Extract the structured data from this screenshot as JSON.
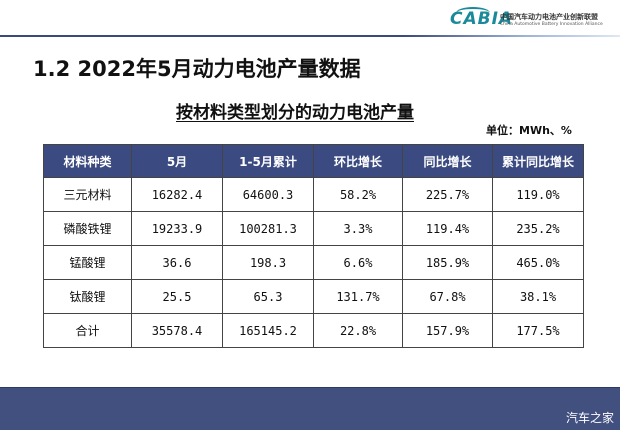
{
  "header": {
    "logo_mark": "CABIA",
    "logo_cn": "中国汽车动力电池产业创新联盟",
    "logo_en": "China Automotive Battery Innovation Alliance"
  },
  "section_title": "1.2 2022年5月动力电池产量数据",
  "table_title": "按材料类型划分的动力电池产量",
  "unit": "单位：MWh、%",
  "table": {
    "headers": [
      "材料种类",
      "5月",
      "1-5月累计",
      "环比增长",
      "同比增长",
      "累计同比增长"
    ],
    "rows": [
      [
        "三元材料",
        "16282.4",
        "64600.3",
        "58.2%",
        "225.7%",
        "119.0%"
      ],
      [
        "磷酸铁锂",
        "19233.9",
        "100281.3",
        "3.3%",
        "119.4%",
        "235.2%"
      ],
      [
        "锰酸锂",
        "36.6",
        "198.3",
        "6.6%",
        "185.9%",
        "465.0%"
      ],
      [
        "钛酸锂",
        "25.5",
        "65.3",
        "131.7%",
        "67.8%",
        "38.1%"
      ],
      [
        "合计",
        "35578.4",
        "165145.2",
        "22.8%",
        "157.9%",
        "177.5%"
      ]
    ]
  },
  "footer": {
    "watermark": "汽车之家"
  },
  "colors": {
    "header_bg": "#3b4a80",
    "footer_bg": "#41507f",
    "logo_accent": "#1a8a9a"
  }
}
